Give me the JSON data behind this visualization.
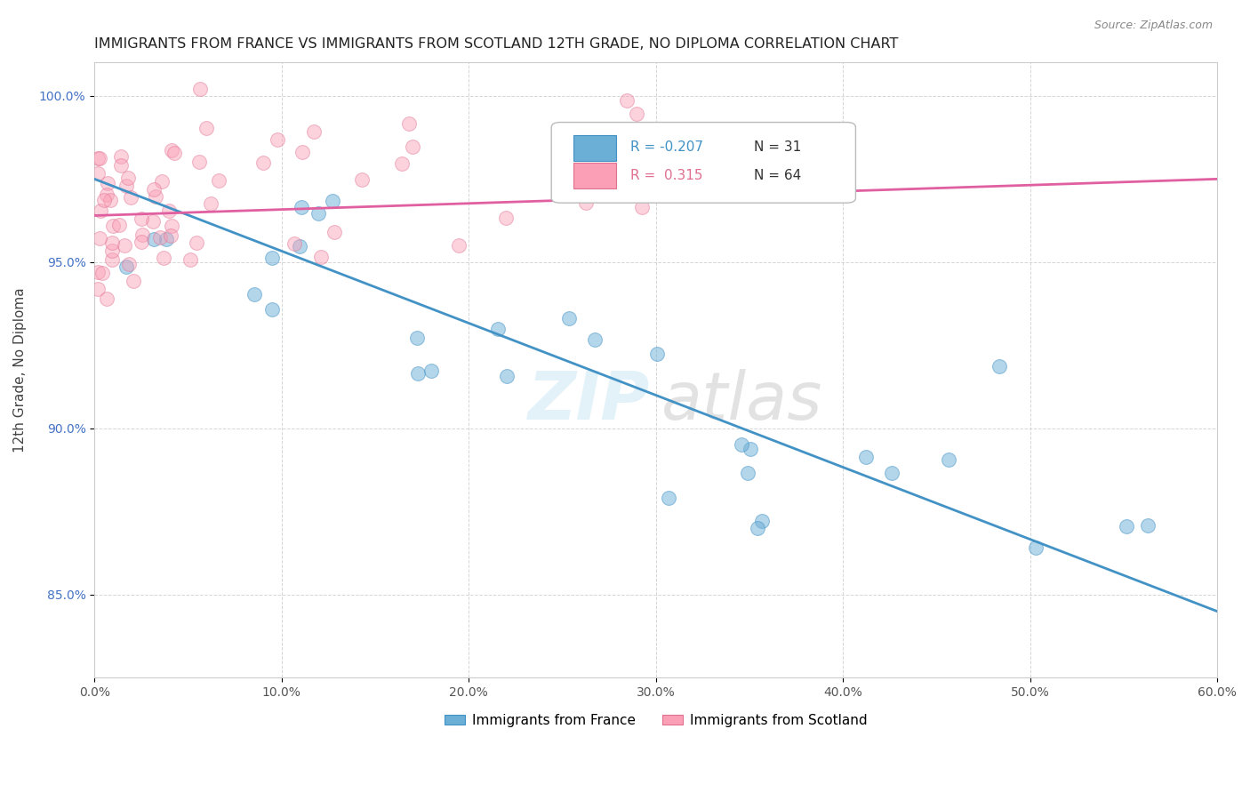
{
  "title": "IMMIGRANTS FROM FRANCE VS IMMIGRANTS FROM SCOTLAND 12TH GRADE, NO DIPLOMA CORRELATION CHART",
  "source": "Source: ZipAtlas.com",
  "xlabel_blue": "Immigrants from France",
  "xlabel_pink": "Immigrants from Scotland",
  "ylabel": "12th Grade, No Diploma",
  "R_blue": -0.207,
  "N_blue": 31,
  "R_pink": 0.315,
  "N_pink": 64,
  "xlim": [
    0.0,
    0.6
  ],
  "ylim": [
    0.825,
    1.01
  ],
  "xticks": [
    0.0,
    0.1,
    0.2,
    0.3,
    0.4,
    0.5,
    0.6
  ],
  "xtick_labels": [
    "0.0%",
    "10.0%",
    "20.0%",
    "30.0%",
    "40.0%",
    "50.0%",
    "60.0%"
  ],
  "yticks": [
    0.85,
    0.9,
    0.95,
    1.0
  ],
  "ytick_labels": [
    "85.0%",
    "90.0%",
    "95.0%",
    "100.0%"
  ],
  "color_blue": "#6baed6",
  "color_pink": "#fa9fb5",
  "trendline_blue": "#4292c6",
  "trendline_pink": "#e05fa0",
  "background_color": "#ffffff",
  "grid_color": "#cccccc",
  "blue_trend_y0": 0.975,
  "blue_trend_y1": 0.845,
  "pink_trend_y0": 0.964,
  "pink_trend_y1": 0.975
}
